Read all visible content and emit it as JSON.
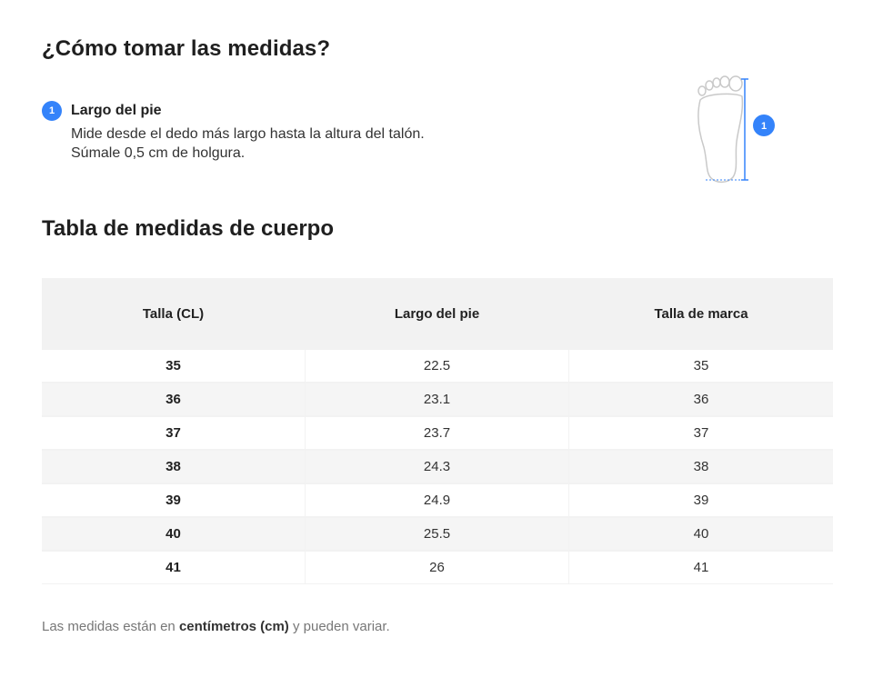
{
  "heading_measure": "¿Cómo tomar las medidas?",
  "step": {
    "number": "1",
    "title": "Largo del pie",
    "text": "Mide desde el dedo más largo hasta la altura del talón. Súmale 0,5 cm de holgura."
  },
  "illustration": {
    "icon": "foot-outline-icon",
    "marker_number": "1",
    "accent_color": "#3483fa"
  },
  "heading_table": "Tabla de medidas de cuerpo",
  "table": {
    "headers": [
      "Talla (CL)",
      "Largo del pie",
      "Talla de marca"
    ],
    "rows": [
      [
        "35",
        "22.5",
        "35"
      ],
      [
        "36",
        "23.1",
        "36"
      ],
      [
        "37",
        "23.7",
        "37"
      ],
      [
        "38",
        "24.3",
        "38"
      ],
      [
        "39",
        "24.9",
        "39"
      ],
      [
        "40",
        "25.5",
        "40"
      ],
      [
        "41",
        "26",
        "41"
      ]
    ]
  },
  "note": {
    "before": "Las medidas están en ",
    "bold": "centímetros (cm)",
    "after": " y pueden variar."
  }
}
